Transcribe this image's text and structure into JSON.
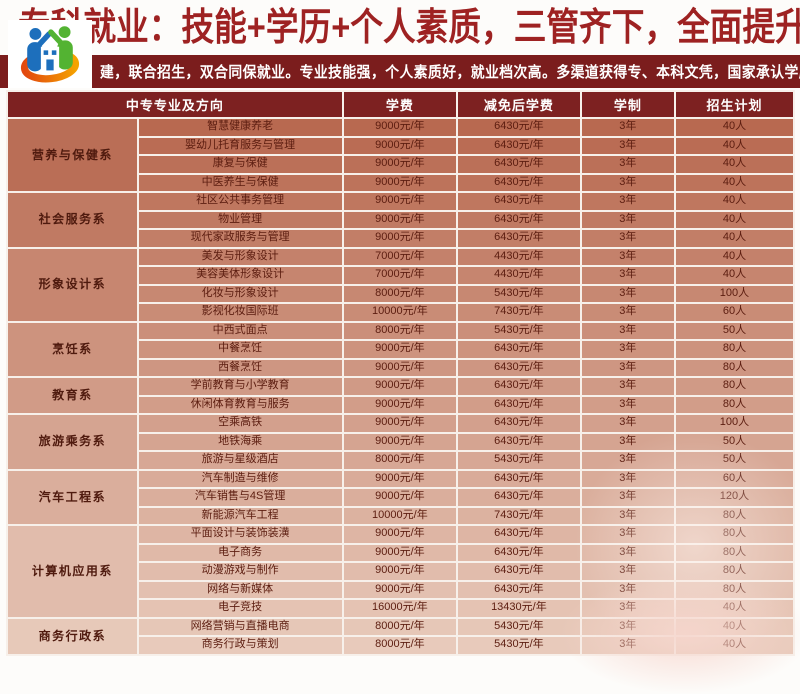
{
  "header": {
    "title": "专科就业：技能+学历+个人素质，三管齐下，全面提升",
    "banner": "建，联合招生，双合同保就业。专业技能强，个人素质好，就业档次高。多渠道获得专、本科文凭，国家承认学历，上网可查"
  },
  "logo": {
    "icon": "house-figures-icon"
  },
  "table": {
    "columns": [
      "中专专业及方向",
      "学费",
      "减免后学费",
      "学制",
      "招生计划"
    ],
    "departments": [
      {
        "name": "营养与保健系",
        "majors": [
          {
            "name": "智慧健康养老",
            "fee": "9000元/年",
            "reduced": "6430元/年",
            "duration": "3年",
            "plan": "40人"
          },
          {
            "name": "婴幼儿托育服务与管理",
            "fee": "9000元/年",
            "reduced": "6430元/年",
            "duration": "3年",
            "plan": "40人"
          },
          {
            "name": "康复与保健",
            "fee": "9000元/年",
            "reduced": "6430元/年",
            "duration": "3年",
            "plan": "40人"
          },
          {
            "name": "中医养生与保健",
            "fee": "9000元/年",
            "reduced": "6430元/年",
            "duration": "3年",
            "plan": "40人"
          }
        ]
      },
      {
        "name": "社会服务系",
        "majors": [
          {
            "name": "社区公共事务管理",
            "fee": "9000元/年",
            "reduced": "6430元/年",
            "duration": "3年",
            "plan": "40人"
          },
          {
            "name": "物业管理",
            "fee": "9000元/年",
            "reduced": "6430元/年",
            "duration": "3年",
            "plan": "40人"
          },
          {
            "name": "现代家政服务与管理",
            "fee": "9000元/年",
            "reduced": "6430元/年",
            "duration": "3年",
            "plan": "40人"
          }
        ]
      },
      {
        "name": "形象设计系",
        "majors": [
          {
            "name": "美发与形象设计",
            "fee": "7000元/年",
            "reduced": "4430元/年",
            "duration": "3年",
            "plan": "40人"
          },
          {
            "name": "美容美体形象设计",
            "fee": "7000元/年",
            "reduced": "4430元/年",
            "duration": "3年",
            "plan": "40人"
          },
          {
            "name": "化妆与形象设计",
            "fee": "8000元/年",
            "reduced": "5430元/年",
            "duration": "3年",
            "plan": "100人"
          },
          {
            "name": "影视化妆国际班",
            "fee": "10000元/年",
            "reduced": "7430元/年",
            "duration": "3年",
            "plan": "60人"
          }
        ]
      },
      {
        "name": "烹饪系",
        "majors": [
          {
            "name": "中西式面点",
            "fee": "8000元/年",
            "reduced": "5430元/年",
            "duration": "3年",
            "plan": "50人"
          },
          {
            "name": "中餐烹饪",
            "fee": "9000元/年",
            "reduced": "6430元/年",
            "duration": "3年",
            "plan": "80人"
          },
          {
            "name": "西餐烹饪",
            "fee": "9000元/年",
            "reduced": "6430元/年",
            "duration": "3年",
            "plan": "80人"
          }
        ]
      },
      {
        "name": "教育系",
        "majors": [
          {
            "name": "学前教育与小学教育",
            "fee": "9000元/年",
            "reduced": "6430元/年",
            "duration": "3年",
            "plan": "80人"
          },
          {
            "name": "休闲体育教育与服务",
            "fee": "9000元/年",
            "reduced": "6430元/年",
            "duration": "3年",
            "plan": "80人"
          }
        ]
      },
      {
        "name": "旅游乘务系",
        "majors": [
          {
            "name": "空乘高铁",
            "fee": "9000元/年",
            "reduced": "6430元/年",
            "duration": "3年",
            "plan": "100人"
          },
          {
            "name": "地铁海乘",
            "fee": "9000元/年",
            "reduced": "6430元/年",
            "duration": "3年",
            "plan": "50人"
          },
          {
            "name": "旅游与星级酒店",
            "fee": "8000元/年",
            "reduced": "5430元/年",
            "duration": "3年",
            "plan": "50人"
          }
        ]
      },
      {
        "name": "汽车工程系",
        "majors": [
          {
            "name": "汽车制造与维修",
            "fee": "9000元/年",
            "reduced": "6430元/年",
            "duration": "3年",
            "plan": "60人"
          },
          {
            "name": "汽车销售与4S管理",
            "fee": "9000元/年",
            "reduced": "6430元/年",
            "duration": "3年",
            "plan": "120人"
          },
          {
            "name": "新能源汽车工程",
            "fee": "10000元/年",
            "reduced": "7430元/年",
            "duration": "3年",
            "plan": "80人"
          }
        ]
      },
      {
        "name": "计算机应用系",
        "majors": [
          {
            "name": "平面设计与装饰装潢",
            "fee": "9000元/年",
            "reduced": "6430元/年",
            "duration": "3年",
            "plan": "80人"
          },
          {
            "name": "电子商务",
            "fee": "9000元/年",
            "reduced": "6430元/年",
            "duration": "3年",
            "plan": "80人"
          },
          {
            "name": "动漫游戏与制作",
            "fee": "9000元/年",
            "reduced": "6430元/年",
            "duration": "3年",
            "plan": "80人"
          },
          {
            "name": "网络与新媒体",
            "fee": "9000元/年",
            "reduced": "6430元/年",
            "duration": "3年",
            "plan": "80人"
          },
          {
            "name": "电子竞技",
            "fee": "16000元/年",
            "reduced": "13430元/年",
            "duration": "3年",
            "plan": "40人"
          }
        ]
      },
      {
        "name": "商务行政系",
        "majors": [
          {
            "name": "网络营销与直播电商",
            "fee": "8000元/年",
            "reduced": "5430元/年",
            "duration": "3年",
            "plan": "40人"
          },
          {
            "name": "商务行政与策划",
            "fee": "8000元/年",
            "reduced": "5430元/年",
            "duration": "3年",
            "plan": "40人"
          }
        ]
      }
    ]
  },
  "colors": {
    "title_red": "#9e2222",
    "banner_bg": "#7b1d1d",
    "table_header_bg": "#7d2121",
    "row_top": "#b7674e",
    "row_bottom": "#e9ccbd",
    "row_text": "#5c1d10",
    "cell_gap": "#f7f0ea",
    "logo_blue": "#1d6fbc",
    "logo_green": "#53b332",
    "logo_orange": "#ef8200"
  }
}
